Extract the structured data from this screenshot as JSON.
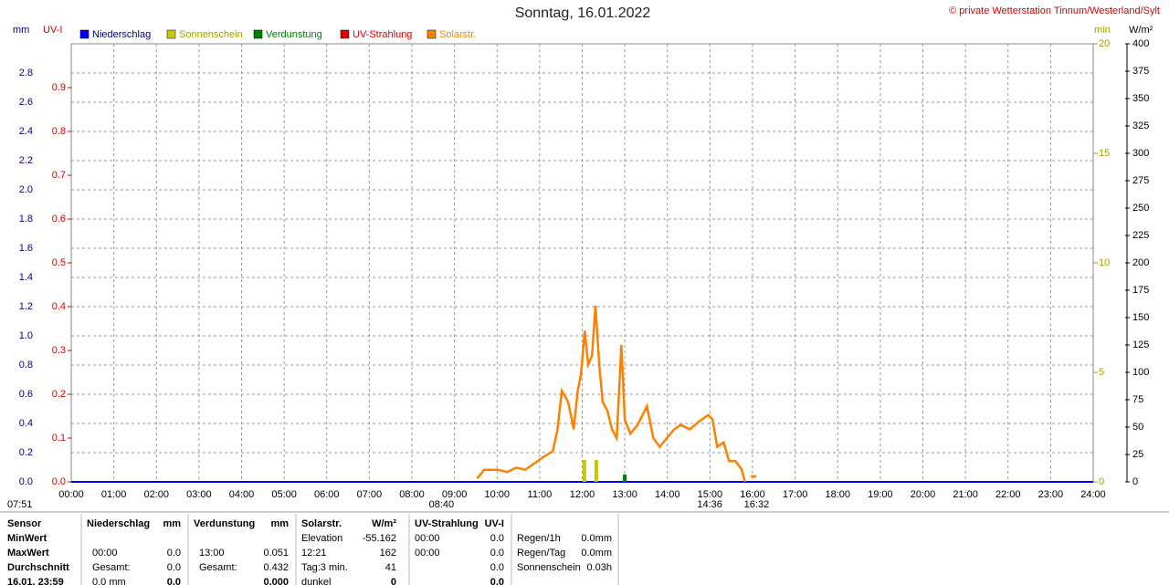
{
  "chart_data": {
    "type": "line",
    "title": "Sonntag, 16.01.2022",
    "credit": "© private Wetterstation Tinnum/Westerland/Sylt",
    "xlim": [
      0,
      24
    ],
    "xticks": [
      {
        "value": 0,
        "label": "00:00"
      },
      {
        "value": 1,
        "label": "01:00"
      },
      {
        "value": 2,
        "label": "02:00"
      },
      {
        "value": 3,
        "label": "03:00"
      },
      {
        "value": 4,
        "label": "04:00"
      },
      {
        "value": 5,
        "label": "05:00"
      },
      {
        "value": 6,
        "label": "06:00"
      },
      {
        "value": 7,
        "label": "07:00"
      },
      {
        "value": 8,
        "label": "08:00"
      },
      {
        "value": 9,
        "label": "09:00"
      },
      {
        "value": 10,
        "label": "10:00"
      },
      {
        "value": 11,
        "label": "11:00"
      },
      {
        "value": 12,
        "label": "12:00"
      },
      {
        "value": 13,
        "label": "13:00"
      },
      {
        "value": 14,
        "label": "14:00"
      },
      {
        "value": 15,
        "label": "15:00"
      },
      {
        "value": 16,
        "label": "16:00"
      },
      {
        "value": 17,
        "label": "17:00"
      },
      {
        "value": 18,
        "label": "18:00"
      },
      {
        "value": 19,
        "label": "19:00"
      },
      {
        "value": 20,
        "label": "20:00"
      },
      {
        "value": 21,
        "label": "21:00"
      },
      {
        "value": 22,
        "label": "22:00"
      },
      {
        "value": 23,
        "label": "23:00"
      },
      {
        "value": 24,
        "label": "24:00"
      }
    ],
    "ylabel": "mm",
    "ylim": [
      0,
      3
    ],
    "yticks": [
      {
        "value": 0,
        "label": "0.0"
      },
      0.2,
      0.4,
      0.6,
      0.8,
      {
        "value": 1,
        "label": "1.0"
      },
      1.2,
      1.4,
      1.6,
      1.8,
      {
        "value": 2,
        "label": "2.0"
      },
      2.2,
      2.4,
      2.6,
      2.8
    ],
    "uv_label": "UV-I",
    "uv_ylim": [
      0,
      1
    ],
    "uv_yticks": [
      {
        "value": 0,
        "label": "0.0"
      },
      0.1,
      0.2,
      0.3,
      0.4,
      0.5,
      0.6,
      0.7,
      0.8,
      0.9
    ],
    "min_label": "min",
    "min_ylim": [
      0,
      20
    ],
    "min_yticks": [
      0,
      5,
      10,
      15,
      20
    ],
    "y2label": "W/m²",
    "y2lim": [
      0,
      400
    ],
    "y2ticks": [
      0,
      25,
      50,
      75,
      100,
      125,
      150,
      175,
      200,
      225,
      250,
      275,
      300,
      325,
      350,
      375,
      400
    ],
    "grid": true,
    "series": [
      {
        "name": "Niederschlag",
        "color": "#0000ff",
        "axis": "y",
        "kind": "line",
        "x": [
          0,
          24
        ],
        "values": [
          0,
          0
        ]
      },
      {
        "name": "Sonnenschein",
        "color": "#c8c800",
        "axis": "min",
        "kind": "bar",
        "x": [
          12.05,
          12.33
        ],
        "values": [
          1,
          1
        ]
      },
      {
        "name": "Verdunstung",
        "color": "#008000",
        "axis": "y",
        "kind": "bar",
        "x": [
          13.0
        ],
        "values": [
          0.051
        ]
      },
      {
        "name": "UV-Strahlung",
        "color": "#e00000",
        "axis": "uv",
        "kind": "line",
        "x": [
          0,
          24
        ],
        "values": [
          0,
          0
        ]
      },
      {
        "name": "Solarstr.",
        "color": "#ff8000",
        "axis": "y2",
        "kind": "line",
        "x": [
          9.53,
          9.7,
          10.02,
          10.24,
          10.45,
          10.66,
          10.88,
          11.1,
          11.31,
          11.42,
          11.52,
          11.67,
          11.8,
          11.89,
          11.97,
          12.06,
          12.14,
          12.23,
          12.31,
          12.4,
          12.48,
          12.59,
          12.7,
          12.81,
          12.92,
          13.0,
          13.13,
          13.3,
          13.52,
          13.67,
          13.82,
          13.99,
          14.16,
          14.31,
          14.53,
          14.74,
          14.96,
          15.06,
          15.17,
          15.32,
          15.45,
          15.6,
          15.75,
          15.82,
          15.9,
          15.96,
          16.09
        ],
        "values": [
          3,
          11,
          11,
          9,
          13,
          11,
          17,
          23,
          28,
          48,
          83,
          73,
          48,
          82,
          98,
          138,
          107,
          115,
          161,
          107,
          73,
          65,
          48,
          40,
          125,
          57,
          44,
          52,
          69,
          40,
          32,
          40,
          48,
          52,
          48,
          55,
          61,
          57,
          32,
          36,
          19,
          19,
          11,
          0,
          null,
          5,
          5
        ]
      }
    ],
    "markers": [
      {
        "x": 0,
        "label": "07:51"
      },
      {
        "x": 8.4,
        "label": "08:40"
      },
      {
        "x": 14.7,
        "label": "14:36"
      },
      {
        "x": 15.8,
        "label": "16:32"
      }
    ]
  },
  "table": {
    "row_labels": [
      "Sensor",
      "MinWert",
      "MaxWert",
      "Durchschnitt",
      "16.01. 23:59"
    ],
    "columns": [
      {
        "header": [
          "Niederschlag",
          "mm"
        ],
        "rows": [
          [
            null,
            null
          ],
          [
            "00:00",
            "0.0"
          ],
          [
            "Gesamt:",
            "0.0"
          ],
          [
            "0.0 mm",
            "0.0"
          ]
        ]
      },
      {
        "header": [
          "Verdunstung",
          "mm"
        ],
        "rows": [
          [
            null,
            null
          ],
          [
            "13:00",
            "0.051"
          ],
          [
            "Gesamt:",
            "0.432"
          ],
          [
            null,
            "0.000"
          ]
        ]
      },
      {
        "header": [
          "Solarstr.",
          "W/m²"
        ],
        "rows": [
          [
            "Elevation",
            "-55.162"
          ],
          [
            "12:21",
            "162"
          ],
          [
            "Tag:3 min.",
            "41"
          ],
          [
            "dunkel",
            "0"
          ]
        ]
      },
      {
        "header": [
          "UV-Strahlung",
          "UV-I"
        ],
        "rows": [
          [
            "00:00",
            "0.0"
          ],
          [
            "00:00",
            "0.0"
          ],
          [
            null,
            "0.0"
          ],
          [
            null,
            "0.0"
          ]
        ]
      },
      {
        "header": [
          null,
          null
        ],
        "rows": [
          [
            "Regen/1h",
            "0.0mm"
          ],
          [
            "Regen/Tag",
            "0.0mm"
          ],
          [
            "Sonnenschein",
            "0.03h"
          ],
          [
            null,
            null
          ]
        ]
      }
    ]
  }
}
